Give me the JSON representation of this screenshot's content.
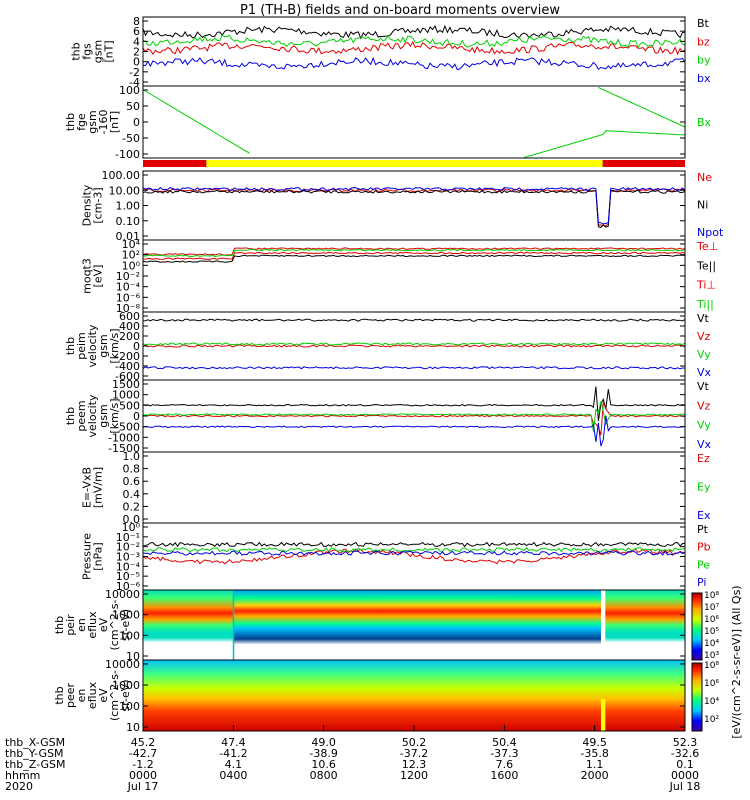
{
  "title": "P1 (TH-B) fields and on-board moments overview",
  "colors": {
    "black": "#000000",
    "red": "#e00000",
    "green": "#00d000",
    "blue": "#0000e0",
    "yellow": "#ffff00"
  },
  "chart_data": [
    {
      "type": "line",
      "ylabel": [
        "thb",
        "fgs",
        "gsm",
        "[nT]"
      ],
      "yticks": [
        "8",
        "6",
        "4",
        "2",
        "0",
        "-2",
        "-4"
      ],
      "ylim": [
        -4,
        8
      ],
      "legend": [
        "Bt",
        "bz",
        "by",
        "bx"
      ],
      "legend_colors": [
        "black",
        "red",
        "green",
        "blue"
      ]
    },
    {
      "type": "line",
      "ylabel": [
        "thb",
        "fge",
        "gsm",
        "-160",
        "[nT]"
      ],
      "yticks": [
        "100",
        "50",
        "0",
        "-50",
        "-100"
      ],
      "ylim": [
        -130,
        110
      ],
      "legend": [
        "Bx"
      ],
      "legend_colors": [
        "green"
      ]
    },
    {
      "type": "bar",
      "ylabel": [],
      "yticks": [],
      "legend": [],
      "legend_colors": [],
      "segments": [
        {
          "from": 0,
          "to": 0.117,
          "color": "red"
        },
        {
          "from": 0.117,
          "to": 0.848,
          "color": "yellow"
        },
        {
          "from": 0.848,
          "to": 1,
          "color": "red"
        }
      ]
    },
    {
      "type": "line",
      "log": true,
      "ylabel": [
        "Density",
        "[cm-3]"
      ],
      "yticks": [
        "100.00",
        "10.00",
        "1.00",
        "0.10",
        "0.01"
      ],
      "legend": [
        "Ne",
        "Ni",
        "Npot"
      ],
      "legend_colors": [
        "red",
        "black",
        "blue"
      ]
    },
    {
      "type": "line",
      "log": true,
      "ylabel": [
        "moqt3",
        "[eV]"
      ],
      "yticks": [
        "10⁴",
        "10²",
        "10⁰",
        "10⁻²",
        "10⁻⁴",
        "10⁻⁶",
        "10⁻⁸"
      ],
      "legend": [
        "Te⊥",
        "Te||",
        "Ti⊥",
        "Ti||"
      ],
      "legend_colors": [
        "red",
        "black",
        "red",
        "green"
      ]
    },
    {
      "type": "line",
      "ylabel": [
        "thb",
        "peim",
        "velocity",
        "gsm",
        "[km/s]"
      ],
      "yticks": [
        "600",
        "400",
        "200",
        "0",
        "-200",
        "-400",
        "-600"
      ],
      "ylim": [
        -600,
        600
      ],
      "legend": [
        "Vt",
        "Vz",
        "Vy",
        "Vx"
      ],
      "legend_colors": [
        "black",
        "red",
        "green",
        "blue"
      ]
    },
    {
      "type": "line",
      "ylabel": [
        "thb",
        "peem",
        "velocity",
        "gsm",
        "[km/s]"
      ],
      "yticks": [
        "1500",
        "1000",
        "500",
        "0",
        "-500",
        "-1000",
        "-1500"
      ],
      "ylim": [
        -1500,
        1500
      ],
      "legend": [
        "Vt",
        "Vz",
        "Vy",
        "Vx"
      ],
      "legend_colors": [
        "black",
        "red",
        "green",
        "blue"
      ]
    },
    {
      "type": "line",
      "ylabel": [
        "E=-VxB",
        "[mV/m]"
      ],
      "yticks": [
        "1.0",
        "0.8",
        "0.6",
        "0.4",
        "0.2",
        "0.0"
      ],
      "ylim": [
        0,
        1
      ],
      "legend": [
        "Ez",
        "Ey",
        "Ex"
      ],
      "legend_colors": [
        "red",
        "green",
        "blue"
      ]
    },
    {
      "type": "line",
      "log": true,
      "ylabel": [
        "Pressure",
        "[nPa]"
      ],
      "yticks": [
        "10⁰",
        "10⁻¹",
        "10⁻²",
        "10⁻³",
        "10⁻⁴",
        "10⁻⁵",
        "10⁻⁶"
      ],
      "legend": [
        "Pt",
        "Pb",
        "Pe",
        "Pi"
      ],
      "legend_colors": [
        "black",
        "red",
        "green",
        "blue"
      ]
    },
    {
      "type": "heatmap",
      "ylabel": [
        "thb",
        "peir",
        "en",
        "eflux",
        "eV",
        "(cm^2-s-",
        "sr-eV)"
      ],
      "yticks": [
        "10000",
        "1000",
        "100",
        "10"
      ],
      "legend": [],
      "legend_colors": []
    },
    {
      "type": "heatmap",
      "ylabel": [
        "thb",
        "peer",
        "en",
        "eflux",
        "eV",
        "(cm^2-s-",
        "sr-eV)"
      ],
      "yticks": [
        "10000",
        "1000",
        "100",
        "10"
      ],
      "legend": [],
      "legend_colors": []
    }
  ],
  "colorbar": {
    "ticks": [
      "10⁸",
      "10⁷",
      "10⁶",
      "10⁵",
      "10⁴",
      "10³"
    ],
    "label": "[eV/(cm^2-s-sr-eV)] (All Qs)",
    "ticks2": [
      "10⁸",
      "10⁶",
      "10⁴",
      "10²"
    ]
  },
  "x_axis": {
    "row_labels": [
      "thb_X-GSM",
      "thb_Y-GSM",
      "thb_Z-GSM",
      "hhmm",
      "2020"
    ],
    "columns": [
      {
        "f": 0.0,
        "vals": [
          "45.2",
          "-42.7",
          "-1.2",
          "0000",
          "Jul 17"
        ]
      },
      {
        "f": 0.1667,
        "vals": [
          "47.4",
          "-41.2",
          "4.1",
          "0400",
          ""
        ]
      },
      {
        "f": 0.3333,
        "vals": [
          "49.0",
          "-38.9",
          "10.6",
          "0800",
          ""
        ]
      },
      {
        "f": 0.5,
        "vals": [
          "50.2",
          "-37.2",
          "12.3",
          "1200",
          ""
        ]
      },
      {
        "f": 0.6667,
        "vals": [
          "50.4",
          "-37.3",
          "7.6",
          "1600",
          ""
        ]
      },
      {
        "f": 0.8333,
        "vals": [
          "49.5",
          "-35.8",
          "1.1",
          "2000",
          ""
        ]
      },
      {
        "f": 1.0,
        "vals": [
          "52.3",
          "-32.6",
          "0.1",
          "0000",
          "Jul 18"
        ]
      }
    ]
  }
}
